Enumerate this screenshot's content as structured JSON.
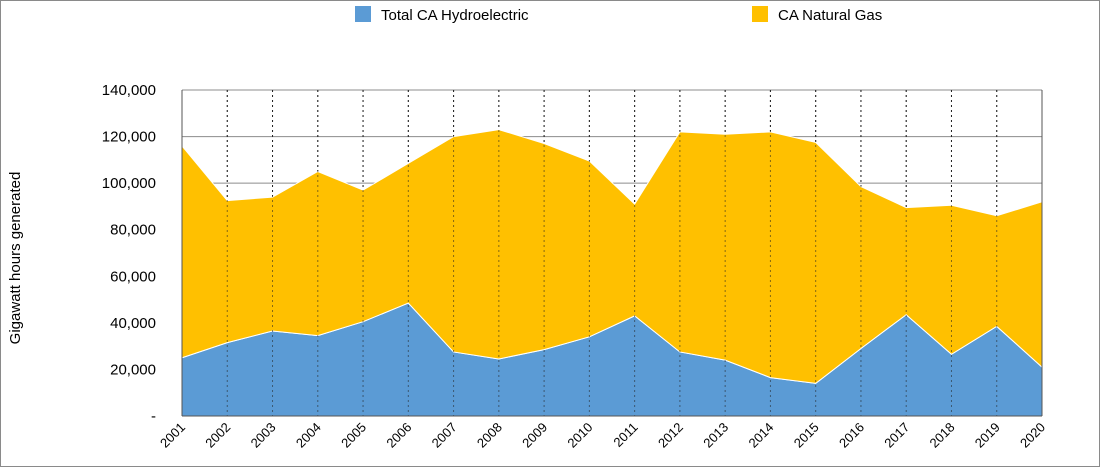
{
  "chart_data": {
    "type": "area",
    "stacked": true,
    "categories": [
      "2001",
      "2002",
      "2003",
      "2004",
      "2005",
      "2006",
      "2007",
      "2008",
      "2009",
      "2010",
      "2011",
      "2012",
      "2013",
      "2014",
      "2015",
      "2016",
      "2017",
      "2018",
      "2019",
      "2020"
    ],
    "series": [
      {
        "name": "Total CA Hydroelectric",
        "color": "#5b9bd5",
        "values": [
          25000,
          31500,
          36500,
          34500,
          40500,
          48500,
          27500,
          24500,
          28500,
          34000,
          43000,
          27500,
          24000,
          16500,
          14000,
          29000,
          43500,
          26500,
          38500,
          21000
        ]
      },
      {
        "name": "CA Natural Gas",
        "color": "#ffc000",
        "values": [
          91000,
          61000,
          57500,
          70500,
          56500,
          60000,
          92500,
          98500,
          88500,
          75500,
          48000,
          94500,
          97000,
          105500,
          103500,
          69500,
          46000,
          64000,
          47500,
          71000
        ]
      }
    ],
    "ylabel": "Gigawatt hours generated",
    "xlabel": "",
    "ylim": [
      0,
      140000
    ],
    "y_ticks": [
      "-",
      "20,000",
      "40,000",
      "60,000",
      "80,000",
      "100,000",
      "120,000",
      "140,000"
    ],
    "grid": "horizontal solid, vertical dotted",
    "legend_position": "top"
  }
}
